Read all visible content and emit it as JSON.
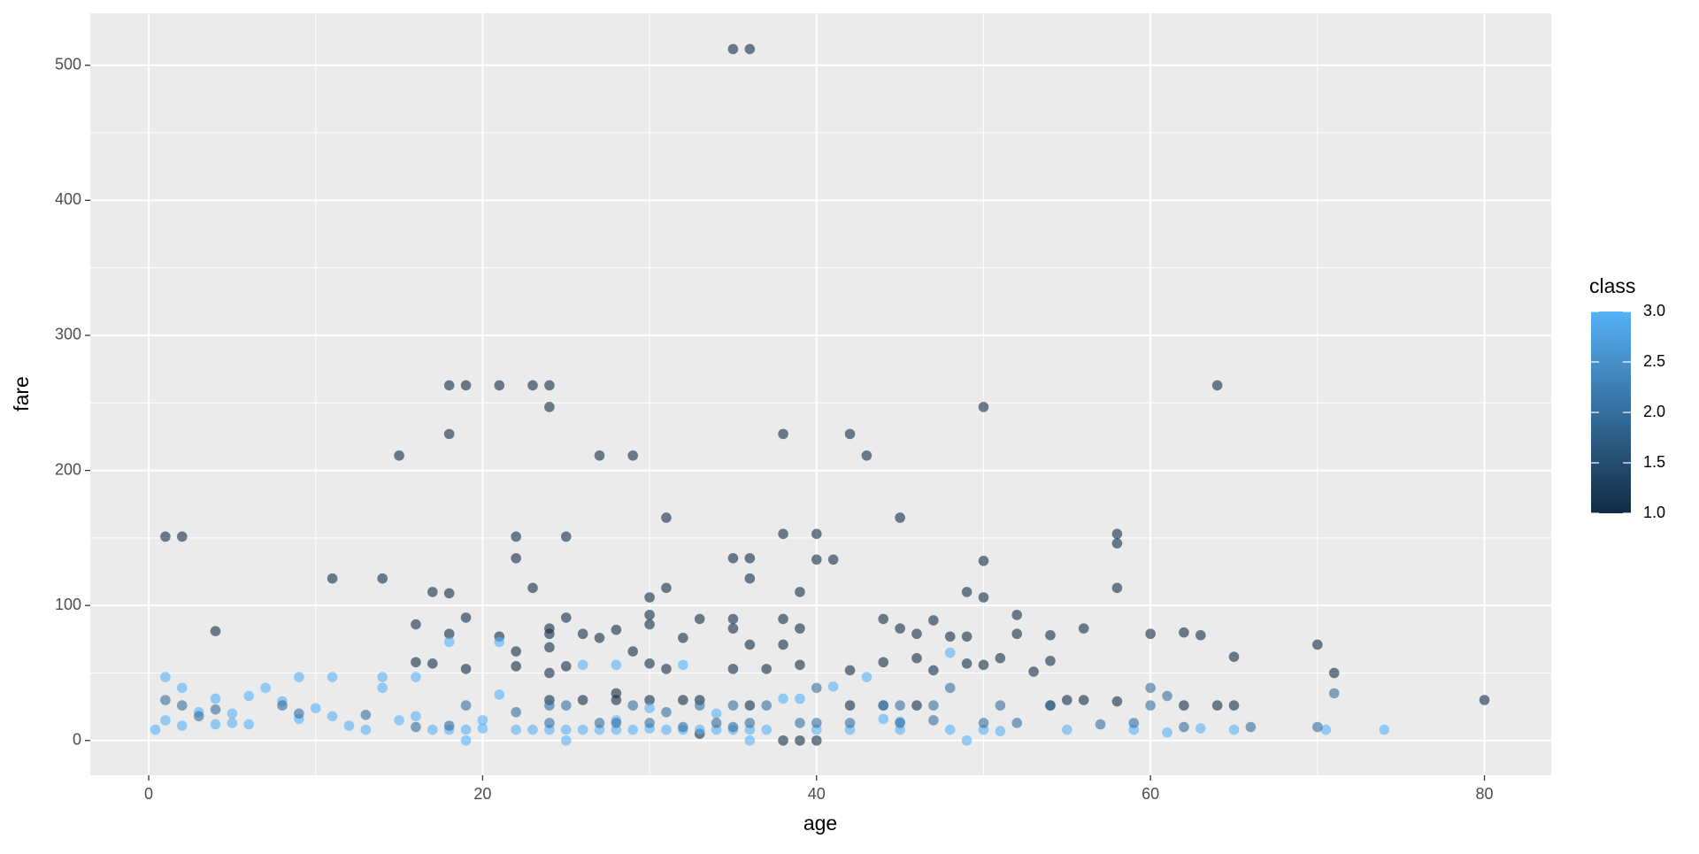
{
  "chart_data": {
    "type": "scatter",
    "x_label": "age",
    "y_label": "fare",
    "legend_title": "class",
    "xlim": [
      -3.5,
      84
    ],
    "ylim": [
      -25.7,
      538.5
    ],
    "xticks": [
      0,
      20,
      40,
      60,
      80
    ],
    "yticks": [
      0,
      100,
      200,
      300,
      400,
      500
    ],
    "grid": true,
    "legend_position": "right",
    "color_low": "#132B43",
    "color_high": "#56B1F7",
    "clim": [
      1,
      3
    ],
    "color_ticks": [
      {
        "value": 1,
        "label": "1.0"
      },
      1.5,
      {
        "value": 2,
        "label": "2.0"
      },
      2.5,
      {
        "value": 3,
        "label": "3.0"
      }
    ],
    "x": [
      35,
      36,
      64,
      18,
      19,
      21,
      23,
      24,
      50,
      24,
      18,
      38,
      42,
      15,
      27,
      29,
      43,
      31,
      45,
      1,
      2,
      22,
      25,
      38,
      40,
      58,
      58,
      22,
      35,
      36,
      40,
      41,
      50,
      11,
      14,
      36,
      23,
      31,
      58,
      17,
      18,
      39,
      49,
      30,
      50,
      52,
      19,
      25,
      30,
      33,
      35,
      38,
      44,
      47,
      16,
      30,
      24,
      45,
      56,
      4,
      18,
      24,
      26,
      28,
      35,
      39,
      46,
      48,
      49,
      52,
      54,
      60,
      62,
      63,
      21,
      27,
      32,
      38,
      36,
      70,
      22,
      24,
      29,
      49,
      46,
      51,
      65,
      54,
      17,
      16,
      44,
      30,
      25,
      39,
      50,
      22,
      31,
      35,
      37,
      42,
      47,
      53,
      71,
      24,
      19,
      38,
      39,
      40,
      80,
      33,
      62,
      64,
      65,
      58,
      56,
      54,
      55,
      46,
      42,
      36,
      30,
      28,
      26,
      24,
      28,
      32,
      33,
      0.4,
      1,
      1,
      2,
      2,
      3,
      4,
      4,
      5,
      5,
      6,
      6,
      7,
      8,
      9,
      9,
      10,
      11,
      11,
      12,
      13,
      14,
      14,
      15,
      16,
      16,
      17,
      18,
      18,
      19,
      19,
      20,
      20,
      21,
      21,
      22,
      23,
      24,
      25,
      25,
      26,
      26,
      27,
      28,
      28,
      29,
      30,
      30,
      31,
      32,
      32,
      33,
      34,
      35,
      36,
      36,
      37,
      38,
      39,
      40,
      41,
      42,
      43,
      44,
      45,
      48,
      48,
      49,
      50,
      51,
      55,
      59,
      61,
      63,
      65,
      70.5,
      74,
      45,
      34,
      28,
      1,
      2,
      3,
      4,
      8,
      9,
      13,
      16,
      18,
      19,
      22,
      24,
      25,
      27,
      28,
      29,
      30,
      31,
      32,
      33,
      34,
      35,
      36,
      37,
      39,
      40,
      42,
      44,
      45,
      47,
      50,
      51,
      54,
      57,
      59,
      62,
      66,
      70,
      52,
      60,
      48,
      45,
      60,
      40,
      71,
      61,
      44,
      24,
      35,
      47
    ],
    "values": [
      512,
      512,
      263,
      263,
      263,
      263,
      263,
      263,
      247,
      247,
      227,
      227,
      227,
      211,
      211,
      211,
      211,
      165,
      165,
      151,
      151,
      151,
      151,
      153,
      153,
      153,
      146,
      135,
      135,
      135,
      134,
      134,
      133,
      120,
      120,
      120,
      113,
      113,
      113,
      110,
      109,
      110,
      110,
      106,
      106,
      93,
      91,
      91,
      93,
      90,
      90,
      90,
      90,
      89,
      86,
      86,
      83,
      83,
      83,
      81,
      79,
      79,
      79,
      82,
      83,
      83,
      79,
      77,
      77,
      79,
      78,
      79,
      80,
      78,
      77,
      76,
      76,
      71,
      71,
      71,
      66,
      69,
      66,
      57,
      61,
      61,
      62,
      59,
      57,
      58,
      58,
      57,
      55,
      56,
      56,
      55,
      53,
      53,
      53,
      52,
      52,
      51,
      50,
      50,
      53,
      0,
      0,
      0,
      30,
      5,
      26,
      26,
      26,
      29,
      30,
      26,
      30,
      26,
      26,
      26,
      30,
      30,
      30,
      30,
      35,
      30,
      30,
      8,
      15,
      47,
      39,
      11,
      21,
      31,
      12,
      20,
      13,
      33,
      12,
      39,
      29,
      47,
      16,
      24,
      47,
      18,
      11,
      8,
      47,
      39,
      15,
      47,
      18,
      8,
      8,
      73,
      0,
      8,
      9,
      15,
      34,
      73,
      8,
      8,
      8,
      0,
      8,
      56,
      8,
      8,
      56,
      8,
      8,
      9,
      24,
      8,
      56,
      8,
      8,
      8,
      8,
      0,
      8,
      8,
      31,
      31,
      8,
      40,
      8,
      47,
      16,
      8,
      8,
      65,
      0,
      8,
      7,
      8,
      8,
      6,
      9,
      8,
      8,
      8,
      14,
      20,
      15,
      30,
      26,
      18,
      23,
      26,
      20,
      19,
      10,
      11,
      26,
      21,
      13,
      26,
      13,
      13,
      26,
      13,
      21,
      10,
      26,
      13,
      10,
      13,
      26,
      13,
      13,
      13,
      26,
      13,
      15,
      13,
      26,
      26,
      12,
      13,
      10,
      10,
      10,
      13,
      26,
      39,
      26,
      39,
      39,
      35,
      33,
      26,
      26,
      26,
      26
    ],
    "color_values": [
      1,
      1,
      1,
      1,
      1,
      1,
      1,
      1,
      1,
      1,
      1,
      1,
      1,
      1,
      1,
      1,
      1,
      1,
      1,
      1,
      1,
      1,
      1,
      1,
      1,
      1,
      1,
      1,
      1,
      1,
      1,
      1,
      1,
      1,
      1,
      1,
      1,
      1,
      1,
      1,
      1,
      1,
      1,
      1,
      1,
      1,
      1,
      1,
      1,
      1,
      1,
      1,
      1,
      1,
      1,
      1,
      1,
      1,
      1,
      1,
      1,
      1,
      1,
      1,
      1,
      1,
      1,
      1,
      1,
      1,
      1,
      1,
      1,
      1,
      1,
      1,
      1,
      1,
      1,
      1,
      1,
      1,
      1,
      1,
      1,
      1,
      1,
      1,
      1,
      1,
      1,
      1,
      1,
      1,
      1,
      1,
      1,
      1,
      1,
      1,
      1,
      1,
      1,
      1,
      1,
      1,
      1,
      1,
      1,
      1,
      1,
      1,
      1,
      1,
      1,
      1,
      1,
      1,
      1,
      1,
      1,
      1,
      1,
      1,
      1,
      1,
      1,
      3,
      3,
      3,
      3,
      3,
      3,
      3,
      3,
      3,
      3,
      3,
      3,
      3,
      3,
      3,
      3,
      3,
      3,
      3,
      3,
      3,
      3,
      3,
      3,
      3,
      3,
      3,
      3,
      3,
      3,
      3,
      3,
      3,
      3,
      3,
      3,
      3,
      3,
      3,
      3,
      3,
      3,
      3,
      3,
      3,
      3,
      3,
      3,
      3,
      3,
      3,
      3,
      3,
      3,
      3,
      3,
      3,
      3,
      3,
      3,
      3,
      3,
      3,
      3,
      3,
      3,
      3,
      3,
      3,
      3,
      3,
      3,
      3,
      3,
      3,
      3,
      3,
      3,
      3,
      3,
      2,
      2,
      2,
      2,
      2,
      2,
      2,
      2,
      2,
      2,
      2,
      2,
      2,
      2,
      2,
      2,
      2,
      2,
      2,
      2,
      2,
      2,
      2,
      2,
      2,
      2,
      2,
      2,
      2,
      2,
      2,
      2,
      2,
      2,
      2,
      2,
      2,
      2,
      2,
      2,
      2,
      2,
      2,
      2,
      2,
      2,
      2,
      2,
      2,
      2
    ]
  }
}
